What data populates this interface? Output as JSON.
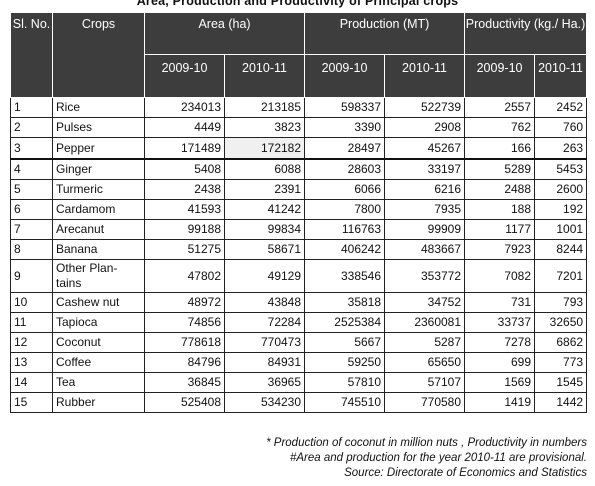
{
  "title": "Area, Production and Productivity of Principal crops",
  "headers": {
    "sl_no": "Sl. No.",
    "crops": "Crops",
    "area": "Area (ha)",
    "production": "Production (MT)",
    "productivity": "Productivity (kg./ Ha.)",
    "years": [
      "2009-10",
      "2010-11",
      "2009-10",
      "2010-11",
      "2009-10",
      "2010-11"
    ]
  },
  "rows": [
    {
      "sl": "1",
      "crop": "Rice",
      "values": [
        "234013",
        "213185",
        "598337",
        "522739",
        "2557",
        "2452"
      ]
    },
    {
      "sl": "2",
      "crop": "Pulses",
      "values": [
        "4449",
        "3823",
        "3390",
        "2908",
        "762",
        "760"
      ]
    },
    {
      "sl": "3",
      "crop": "Pepper",
      "values": [
        "171489",
        "172182",
        "28497",
        "45267",
        "166",
        "263"
      ]
    },
    {
      "sl": "4",
      "crop": "Ginger",
      "values": [
        "5408",
        "6088",
        "28603",
        "33197",
        "5289",
        "5453"
      ]
    },
    {
      "sl": "5",
      "crop": "Turmeric",
      "values": [
        "2438",
        "2391",
        "6066",
        "6216",
        "2488",
        "2600"
      ]
    },
    {
      "sl": "6",
      "crop": "Cardamom",
      "values": [
        "41593",
        "41242",
        "7800",
        "7935",
        "188",
        "192"
      ]
    },
    {
      "sl": "7",
      "crop": "Arecanut",
      "values": [
        "99188",
        "99834",
        "116763",
        "99909",
        "1177",
        "1001"
      ]
    },
    {
      "sl": "8",
      "crop": "Banana",
      "values": [
        "51275",
        "58671",
        "406242",
        "483667",
        "7923",
        "8244"
      ]
    },
    {
      "sl": "9",
      "crop": "Other Plan-tains",
      "values": [
        "47802",
        "49129",
        "338546",
        "353772",
        "7082",
        "7201"
      ]
    },
    {
      "sl": "10",
      "crop": "Cashew nut",
      "values": [
        "48972",
        "43848",
        "35818",
        "34752",
        "731",
        "793"
      ]
    },
    {
      "sl": "11",
      "crop": "Tapioca",
      "values": [
        "74856",
        "72284",
        "2525384",
        "2360081",
        "33737",
        "32650"
      ]
    },
    {
      "sl": "12",
      "crop": "Coconut",
      "values": [
        "778618",
        "770473",
        "5667",
        "5287",
        "7278",
        "6862"
      ]
    },
    {
      "sl": "13",
      "crop": "Coffee",
      "values": [
        "84796",
        "84931",
        "59250",
        "65650",
        "699",
        "773"
      ]
    },
    {
      "sl": "14",
      "crop": "Tea",
      "values": [
        "36845",
        "36965",
        "57810",
        "57107",
        "1569",
        "1545"
      ]
    },
    {
      "sl": "15",
      "crop": "Rubber",
      "values": [
        "525408",
        "534230",
        "745510",
        "770580",
        "1419",
        "1442"
      ]
    }
  ],
  "notes": {
    "line1": "* Production of coconut  in million nuts , Productivity in numbers",
    "line2": "#Area and production for the year 2010-11 are provisional.",
    "line3": "Source: Directorate of Economics and Statistics"
  }
}
